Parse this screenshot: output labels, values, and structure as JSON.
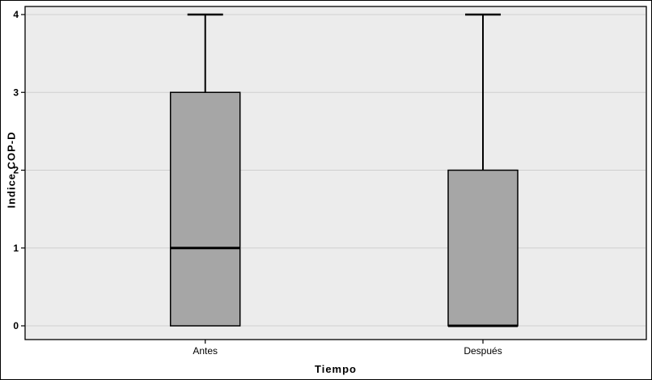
{
  "figure": {
    "background": "#ffffff",
    "plot_background": "#ececec",
    "border_color": "#000000"
  },
  "chart_data": {
    "type": "boxplot",
    "title": "",
    "xlabel": "Tiempo",
    "ylabel": "Indice COP-D",
    "categories": [
      "Antes",
      "Después"
    ],
    "yticks": [
      0,
      1,
      2,
      3,
      4
    ],
    "ylim": [
      0,
      4
    ],
    "grid": true,
    "legend_position": "none",
    "series": [
      {
        "category": "Antes",
        "min": 0,
        "q1": 0,
        "median": 1,
        "q3": 3,
        "max": 4
      },
      {
        "category": "Después",
        "min": 0,
        "q1": 0,
        "median": 0,
        "q3": 2,
        "max": 4
      }
    ],
    "colors": {
      "box_fill": "#a6a6a6",
      "box_border": "#000000",
      "median": "#000000",
      "whisker": "#000000",
      "grid": "#cfcfcf"
    }
  }
}
